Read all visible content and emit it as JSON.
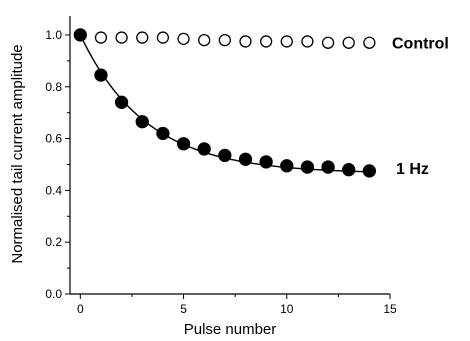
{
  "chart_data": {
    "type": "scatter",
    "xlabel": "Pulse number",
    "ylabel": "Normalised tail current amplitude",
    "xlim": [
      -0.5,
      15
    ],
    "ylim": [
      0,
      1.05
    ],
    "xticks": [
      "0",
      "5",
      "10",
      "15"
    ],
    "yticks": [
      "0.0",
      "0.2",
      "0.4",
      "0.6",
      "0.8",
      "1.0"
    ],
    "xtick_values": [
      0,
      5,
      10,
      15
    ],
    "ytick_values": [
      0.0,
      0.2,
      0.4,
      0.6,
      0.8,
      1.0
    ],
    "series": [
      {
        "name": "Control",
        "marker": "open-circle",
        "x": [
          0,
          1,
          2,
          3,
          4,
          5,
          6,
          7,
          8,
          9,
          10,
          11,
          12,
          13,
          14
        ],
        "values": [
          1.0,
          0.99,
          0.99,
          0.99,
          0.99,
          0.985,
          0.98,
          0.98,
          0.975,
          0.975,
          0.975,
          0.975,
          0.97,
          0.97,
          0.97
        ]
      },
      {
        "name": "1 Hz",
        "marker": "filled-circle",
        "x": [
          0,
          1,
          2,
          3,
          4,
          5,
          6,
          7,
          8,
          9,
          10,
          11,
          12,
          13,
          14
        ],
        "values": [
          1.0,
          0.845,
          0.74,
          0.665,
          0.62,
          0.58,
          0.56,
          0.535,
          0.52,
          0.51,
          0.495,
          0.49,
          0.49,
          0.48,
          0.475
        ]
      }
    ],
    "fit": {
      "series": "1 Hz",
      "model": "exponential decay",
      "plateau": 0.465,
      "amplitude": 0.535,
      "tau": 3.2
    },
    "grid": false
  },
  "colors": {
    "ink": "#000000",
    "background": "#ffffff"
  }
}
